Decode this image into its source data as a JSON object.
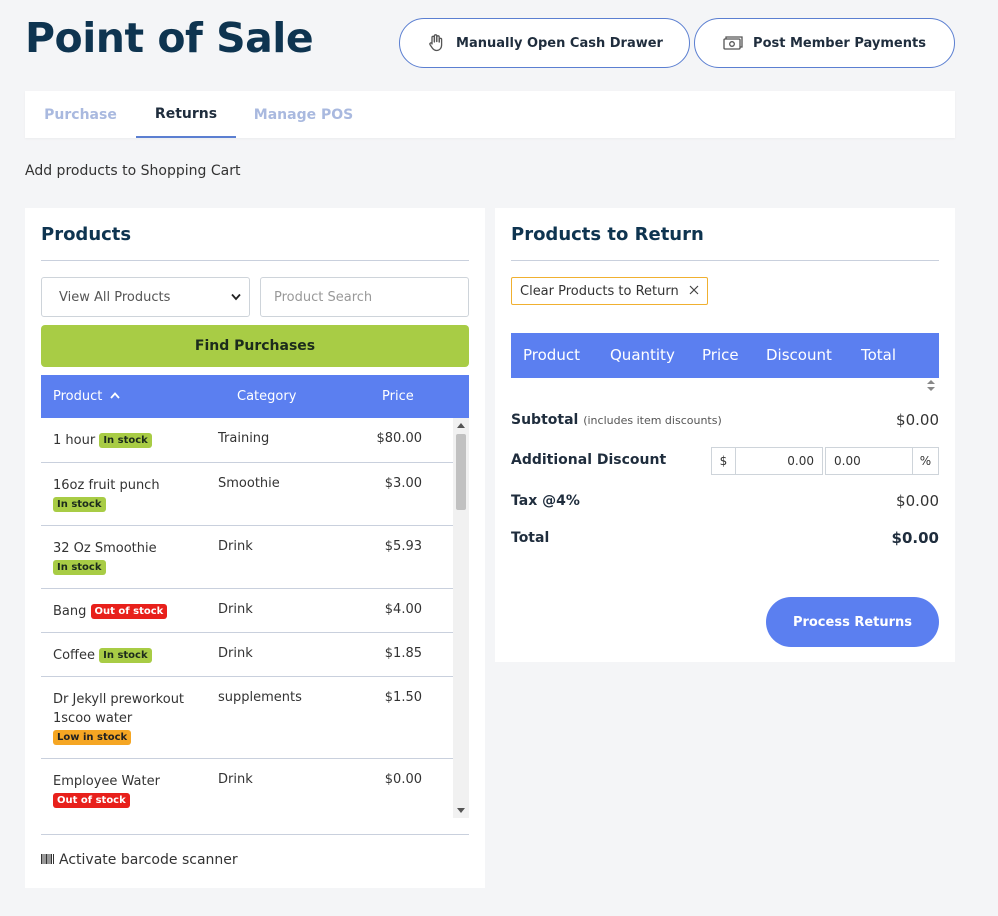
{
  "header": {
    "title": "Point of Sale",
    "cash_drawer_label": "Manually Open Cash Drawer",
    "member_payments_label": "Post Member Payments"
  },
  "tabs": [
    {
      "label": "Purchase",
      "active": false
    },
    {
      "label": "Returns",
      "active": true
    },
    {
      "label": "Manage POS",
      "active": false
    }
  ],
  "subtitle": "Add products to Shopping Cart",
  "products_panel": {
    "title": "Products",
    "filter_selected": "View All Products",
    "search_placeholder": "Product Search",
    "find_button": "Find Purchases",
    "columns": {
      "product": "Product",
      "category": "Category",
      "price": "Price"
    },
    "rows": [
      {
        "name": "1 hour",
        "badge": "In stock",
        "badge_color": "#a8cc45",
        "category": "Training",
        "price": "$80.00"
      },
      {
        "name": "16oz fruit punch",
        "badge": "In stock",
        "badge_color": "#a8cc45",
        "category": "Smoothie",
        "price": "$3.00"
      },
      {
        "name": "32 Oz Smoothie",
        "badge": "In stock",
        "badge_color": "#a8cc45",
        "category": "Drink",
        "price": "$5.93"
      },
      {
        "name": "Bang",
        "badge": "Out of stock",
        "badge_color": "#e8201b",
        "category": "Drink",
        "price": "$4.00"
      },
      {
        "name": "Coffee",
        "badge": "In stock",
        "badge_color": "#a8cc45",
        "category": "Drink",
        "price": "$1.85"
      },
      {
        "name": "Dr Jekyll preworkout 1scoo water",
        "badge": "Low in stock",
        "badge_color": "#f5a623",
        "category": "supplements",
        "price": "$1.50"
      },
      {
        "name": "Employee Water",
        "badge": "Out of stock",
        "badge_color": "#e8201b",
        "category": "Drink",
        "price": "$0.00"
      }
    ],
    "barcode_label": "Activate barcode scanner"
  },
  "return_panel": {
    "title": "Products to Return",
    "clear_label": "Clear Products to Return",
    "columns": [
      "Product",
      "Quantity",
      "Price",
      "Discount",
      "Total"
    ],
    "subtotal_label": "Subtotal",
    "subtotal_note": "(includes item discounts)",
    "subtotal_value": "$0.00",
    "discount_label": "Additional Discount",
    "discount_currency": "$",
    "discount_amount": "0.00",
    "discount_percent": "0.00",
    "percent_symbol": "%",
    "tax_label": "Tax @4%",
    "tax_value": "$0.00",
    "total_label": "Total",
    "total_value": "$0.00",
    "process_button": "Process Returns"
  }
}
